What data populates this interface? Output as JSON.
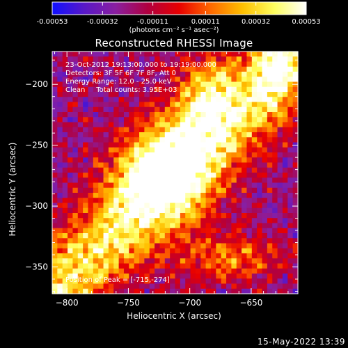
{
  "chart_data": {
    "type": "heatmap",
    "title": "Reconstructed RHESSI Image",
    "xlabel": "Heliocentric X (arcsec)",
    "ylabel": "Heliocentric Y (arcsec)",
    "xlim": [
      -812,
      -612
    ],
    "ylim": [
      -372,
      -173
    ],
    "x_ticks": [
      -800,
      -750,
      -700,
      -650
    ],
    "y_ticks": [
      -200,
      -250,
      -300,
      -350
    ],
    "colorbar": {
      "min": -0.00053,
      "max": 0.00053,
      "tick_values": [
        -0.00053,
        -0.00032,
        -0.00011,
        0.00011,
        0.00032,
        0.00053
      ],
      "tick_labels": [
        "-0.00053",
        "-0.00032",
        "-0.00011",
        "0.00011",
        "0.00032",
        "0.00053"
      ],
      "unit_label": "(photons cm⁻² s⁻¹ asec⁻²)",
      "colormap": "rhessi-heat"
    },
    "annotations": [
      "23-Oct-2012 19:13:00.000 to 19:19:00.000",
      "Detectors: 3F 5F 6F 7F 8F, Att 0",
      "Energy Range: 12.0 - 25.0 keV",
      "Clean     Total counts: 3.95E+03"
    ],
    "peak_label": "Position of Peak = [-715,-274]",
    "peak_position": [
      -715,
      -274
    ]
  },
  "footer": {
    "timestamp": "15-May-2022 13:39"
  },
  "colors": {
    "background": "#000000",
    "foreground": "#ffffff",
    "colormap_stops": [
      "#1010ff",
      "#5818c8",
      "#8a1fa0",
      "#b00040",
      "#e80000",
      "#ff6a00",
      "#ffc000",
      "#ffff60",
      "#ffffff"
    ]
  }
}
